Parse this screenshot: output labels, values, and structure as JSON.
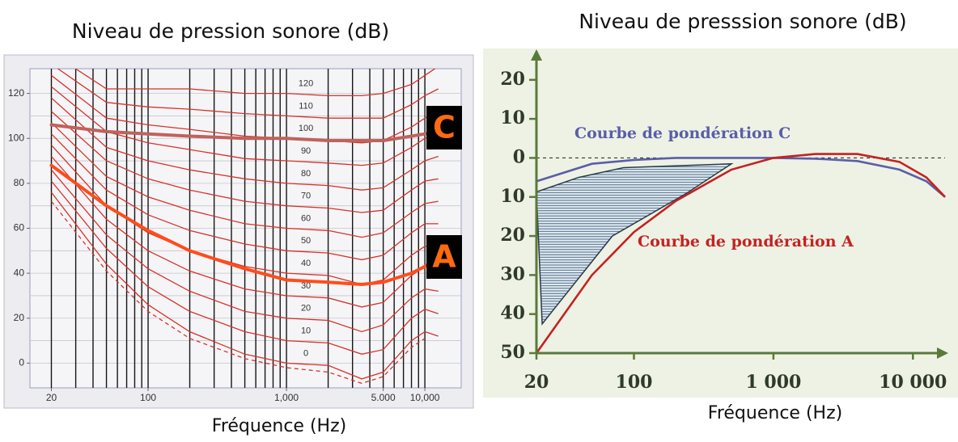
{
  "chart_data": [
    {
      "type": "line",
      "title": "Niveau de pression sonore (dB)",
      "x_label": "Fréquence (Hz)",
      "x_scale": "log",
      "xlim": [
        14,
        18300
      ],
      "ylim": [
        -11,
        131
      ],
      "xticks": [
        20,
        100,
        {
          "value": 1000,
          "label": "1,000"
        },
        {
          "value": 5000,
          "label": "5.000"
        },
        {
          "value": 10000,
          "label": "10,000"
        }
      ],
      "yticks": [
        0,
        20,
        40,
        60,
        80,
        100,
        120
      ],
      "x_grid": [
        20,
        30,
        40,
        50,
        60,
        70,
        80,
        90,
        100,
        200,
        300,
        400,
        500,
        600,
        700,
        800,
        900,
        1000,
        2000,
        3000,
        4000,
        5000,
        6000,
        7000,
        8000,
        9000,
        10000
      ],
      "y_grid": [
        0,
        10,
        20,
        30,
        40,
        50,
        60,
        70,
        80,
        90,
        100,
        110,
        120
      ],
      "x": [
        20,
        50,
        100,
        200,
        500,
        1000,
        2000,
        3500,
        5000,
        8000,
        10000,
        12500
      ],
      "contour_color": "#d8322a",
      "contours": [
        {
          "dashed": true,
          "values": [
            72,
            41,
            23,
            11,
            2,
            -2,
            -4,
            -9,
            -6,
            7,
            11,
            null
          ]
        },
        {
          "level": 0,
          "values": [
            76,
            44,
            26,
            14,
            4,
            0,
            -1,
            -7,
            -4,
            10,
            14,
            12
          ]
        },
        {
          "level": 10,
          "values": [
            81,
            51,
            34,
            23,
            14,
            10,
            9,
            4,
            6,
            20,
            24,
            22
          ]
        },
        {
          "level": 20,
          "values": [
            86,
            57,
            42,
            32,
            23,
            20,
            19,
            14,
            17,
            29,
            33,
            32
          ]
        },
        {
          "level": 30,
          "values": [
            92,
            64,
            50,
            41,
            33,
            30,
            29,
            25,
            27,
            39,
            43,
            42
          ]
        },
        {
          "level": 40,
          "values": [
            97,
            70,
            58,
            50,
            43,
            40,
            39,
            35,
            37,
            48,
            52,
            52
          ]
        },
        {
          "level": 50,
          "values": [
            102,
            77,
            66,
            59,
            53,
            50,
            49,
            46,
            48,
            58,
            62,
            62
          ]
        },
        {
          "level": 60,
          "values": [
            107,
            83,
            74,
            68,
            62,
            60,
            59,
            56,
            58,
            67,
            71,
            72
          ]
        },
        {
          "level": 70,
          "values": [
            112,
            90,
            82,
            77,
            72,
            70,
            69,
            67,
            68,
            77,
            81,
            82
          ]
        },
        {
          "level": 80,
          "values": [
            118,
            96,
            90,
            86,
            82,
            80,
            79,
            77,
            78,
            86,
            90,
            92
          ]
        },
        {
          "level": 90,
          "values": [
            123,
            103,
            98,
            95,
            91,
            90,
            89,
            88,
            89,
            96,
            100,
            102
          ]
        },
        {
          "level": 100,
          "values": [
            128,
            109,
            106,
            104,
            101,
            100,
            99,
            98,
            99,
            105,
            109,
            112
          ]
        },
        {
          "level": 110,
          "values": [
            133,
            116,
            114,
            113,
            111,
            110,
            109,
            109,
            109,
            115,
            119,
            122
          ]
        },
        {
          "level": 120,
          "values": [
            138,
            122,
            122,
            122,
            120,
            120,
            119,
            119,
            120,
            124,
            128,
            132
          ]
        }
      ],
      "series": [
        {
          "name": "C",
          "color": "#c0625c",
          "values": [
            106,
            103,
            102,
            101,
            100,
            100,
            99,
            99,
            99,
            101,
            102,
            103
          ]
        },
        {
          "name": "A",
          "color": "#ff4d1c",
          "values": [
            88,
            70,
            59,
            50,
            42,
            37,
            36,
            35,
            36,
            40,
            43,
            47
          ]
        }
      ]
    },
    {
      "type": "line",
      "title": "Niveau de presssion sonore (dB)",
      "x_label": "Fréquence (Hz)",
      "x_scale": "log",
      "xlim": [
        20,
        17000
      ],
      "ylim": [
        -50,
        27
      ],
      "xticks": [
        20,
        100,
        {
          "value": 1000,
          "label": "1 000"
        },
        {
          "value": 10000,
          "label": "10 000"
        }
      ],
      "yticks": [
        20,
        10,
        0,
        {
          "value": -10,
          "label": "10"
        },
        {
          "value": -20,
          "label": "20"
        },
        {
          "value": -30,
          "label": "30"
        },
        {
          "value": -40,
          "label": "40"
        },
        {
          "value": -50,
          "label": "50"
        }
      ],
      "reference_line": 0,
      "x": [
        20,
        50,
        100,
        200,
        500,
        1000,
        2000,
        4000,
        8000,
        12500,
        17000
      ],
      "series": [
        {
          "name": "Courbe de pondération C",
          "color": "#5a5ea8",
          "values": [
            -6,
            -1.5,
            -0.5,
            0,
            0,
            0,
            -0.2,
            -0.8,
            -3,
            -6,
            -10
          ]
        },
        {
          "name": "Courbe de pondération A",
          "color": "#c42222",
          "values": [
            -50,
            -30,
            -19,
            -11,
            -3,
            0,
            1,
            1,
            -1,
            -5,
            -10
          ]
        }
      ],
      "shaded_region": {
        "x": [
          20,
          40,
          84,
          500,
          240,
          70,
          22
        ],
        "y": [
          -8.7,
          -5,
          -2.5,
          -1.5,
          -9,
          -20,
          -42.5
        ]
      }
    }
  ]
}
